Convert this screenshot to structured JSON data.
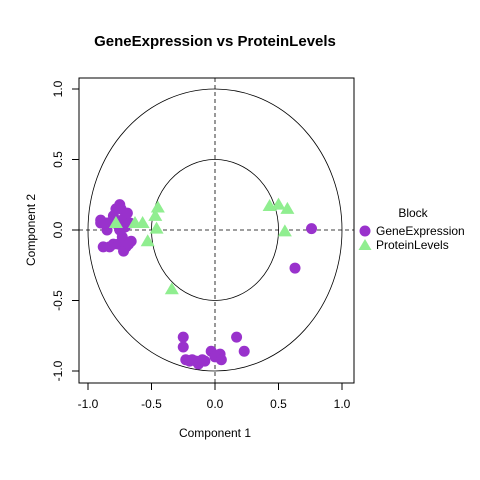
{
  "chart_data": {
    "type": "scatter",
    "title": "GeneExpression vs ProteinLevels",
    "xlabel": "Component 1",
    "ylabel": "Component 2",
    "xlim": [
      -1.1,
      1.1
    ],
    "ylim": [
      -1.05,
      1.05
    ],
    "xticks": [
      -1.0,
      -0.5,
      0.0,
      0.5,
      1.0
    ],
    "xtick_labels": [
      "-1.0",
      "-0.5",
      "0.0",
      "0.5",
      "1.0"
    ],
    "yticks": [
      -1.0,
      -0.5,
      0.0,
      0.5,
      1.0
    ],
    "ytick_labels": [
      "-1.0",
      "-0.5",
      "0.0",
      "0.5",
      "1.0"
    ],
    "circles": [
      1.0,
      0.5
    ],
    "reference_lines": {
      "x": 0,
      "y": 0,
      "style": "dashed"
    },
    "legend": {
      "title": "Block",
      "placement": "right"
    },
    "series": [
      {
        "name": "GeneExpression",
        "marker": "circle",
        "color": "#9932CC",
        "points": [
          [
            -0.9,
            0.07
          ],
          [
            -0.9,
            0.05
          ],
          [
            -0.85,
            0.05
          ],
          [
            -0.85,
            0.0
          ],
          [
            -0.83,
            0.05
          ],
          [
            -0.8,
            -0.1
          ],
          [
            -0.8,
            0.1
          ],
          [
            -0.78,
            0.15
          ],
          [
            -0.77,
            0.04
          ],
          [
            -0.76,
            -0.1
          ],
          [
            -0.75,
            0.0
          ],
          [
            -0.75,
            0.18
          ],
          [
            -0.74,
            0.15
          ],
          [
            -0.73,
            -0.05
          ],
          [
            -0.72,
            0.08
          ],
          [
            -0.72,
            -0.15
          ],
          [
            -0.71,
            0.02
          ],
          [
            -0.7,
            -0.12
          ],
          [
            -0.69,
            0.12
          ],
          [
            -0.68,
            -0.1
          ],
          [
            -0.67,
            0.05
          ],
          [
            -0.66,
            -0.08
          ],
          [
            -0.88,
            -0.12
          ],
          [
            -0.83,
            -0.12
          ],
          [
            0.76,
            0.01
          ],
          [
            0.63,
            -0.27
          ],
          [
            -0.25,
            -0.76
          ],
          [
            -0.25,
            -0.83
          ],
          [
            -0.23,
            -0.92
          ],
          [
            -0.2,
            -0.93
          ],
          [
            -0.18,
            -0.92
          ],
          [
            -0.15,
            -0.93
          ],
          [
            -0.13,
            -0.95
          ],
          [
            -0.1,
            -0.92
          ],
          [
            -0.08,
            -0.93
          ],
          [
            -0.03,
            -0.86
          ],
          [
            0.0,
            -0.9
          ],
          [
            0.04,
            -0.88
          ],
          [
            0.05,
            -0.92
          ],
          [
            0.17,
            -0.76
          ],
          [
            0.23,
            -0.86
          ]
        ]
      },
      {
        "name": "ProteinLevels",
        "marker": "triangle",
        "color": "#90EE90",
        "points": [
          [
            -0.78,
            0.05
          ],
          [
            -0.63,
            0.05
          ],
          [
            -0.57,
            0.05
          ],
          [
            -0.53,
            -0.08
          ],
          [
            -0.47,
            0.1
          ],
          [
            -0.45,
            0.16
          ],
          [
            -0.46,
            0.01
          ],
          [
            -0.34,
            -0.42
          ],
          [
            0.43,
            0.17
          ],
          [
            0.5,
            0.18
          ],
          [
            0.57,
            0.15
          ],
          [
            0.55,
            -0.01
          ]
        ]
      }
    ]
  }
}
